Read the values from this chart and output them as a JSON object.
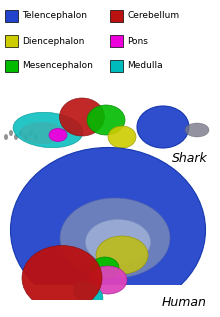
{
  "legend_items": [
    {
      "label": "Telencephalon",
      "color": "#2244cc",
      "col": 0
    },
    {
      "label": "Cerebellum",
      "color": "#cc1111",
      "col": 1
    },
    {
      "label": "Diencephalon",
      "color": "#dddd00",
      "col": 0
    },
    {
      "label": "Pons",
      "color": "#ee00dd",
      "col": 1
    },
    {
      "label": "Mesencephalon",
      "color": "#00cc00",
      "col": 0
    },
    {
      "label": "Medulla",
      "color": "#00cccc",
      "col": 1
    }
  ],
  "background_color": "#ffffff",
  "shark_label": "Shark",
  "human_label": "Human",
  "telencephalon_color": "#2244cc",
  "cerebellum_color": "#bb1111",
  "diencephalon_color": "#cccc00",
  "pons_color": "#ee00dd",
  "mesencephalon_color": "#00bb00",
  "medulla_color": "#00bbbb",
  "gray_color": "#888888",
  "dark_blue_color": "#112288",
  "light_blue_color": "#8899cc"
}
